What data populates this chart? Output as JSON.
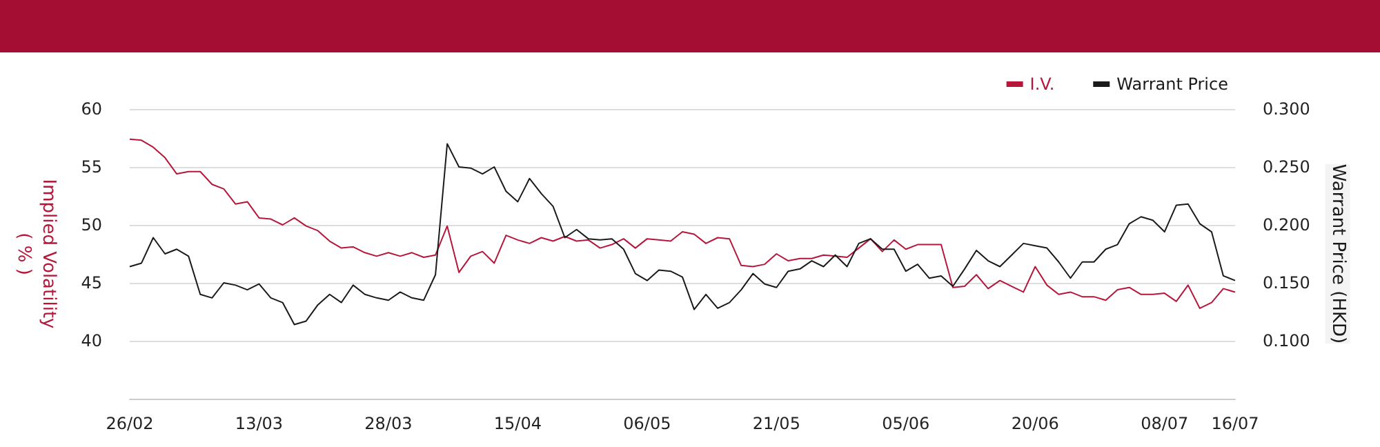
{
  "chart_data": {
    "type": "line",
    "categories": [
      "26/02",
      null,
      null,
      null,
      null,
      null,
      null,
      null,
      null,
      null,
      null,
      "13/03",
      null,
      null,
      null,
      null,
      null,
      null,
      null,
      null,
      null,
      null,
      "28/03",
      null,
      null,
      null,
      null,
      null,
      null,
      null,
      null,
      null,
      null,
      "15/04",
      null,
      null,
      null,
      null,
      null,
      null,
      null,
      null,
      null,
      null,
      "06/05",
      null,
      null,
      null,
      null,
      null,
      null,
      null,
      null,
      null,
      null,
      "21/05",
      null,
      null,
      null,
      null,
      null,
      null,
      null,
      null,
      null,
      null,
      "05/06",
      null,
      null,
      null,
      null,
      null,
      null,
      null,
      null,
      null,
      null,
      "20/06",
      null,
      null,
      null,
      null,
      null,
      null,
      null,
      null,
      null,
      null,
      "08/07",
      null,
      null,
      null,
      null,
      null,
      "16/07"
    ],
    "series": [
      {
        "name": "I.V.",
        "color": "#b5163a",
        "values": [
          57.4,
          57.3,
          56.7,
          55.8,
          54.4,
          54.6,
          54.6,
          53.5,
          53.1,
          51.8,
          52.0,
          50.6,
          50.5,
          50.0,
          50.6,
          49.9,
          49.5,
          48.6,
          48.0,
          48.1,
          47.6,
          47.3,
          47.6,
          47.3,
          47.6,
          47.2,
          47.4,
          49.9,
          45.9,
          47.3,
          47.7,
          46.7,
          49.1,
          48.7,
          48.4,
          48.9,
          48.6,
          49.0,
          48.6,
          48.7,
          48.0,
          48.3,
          48.8,
          48.0,
          48.8,
          48.7,
          48.6,
          49.4,
          49.2,
          48.4,
          48.9,
          48.8,
          46.5,
          46.4,
          46.6,
          47.5,
          46.9,
          47.1,
          47.1,
          47.4,
          47.3,
          47.2,
          48.0,
          48.8,
          47.7,
          48.7,
          47.9,
          48.3,
          48.3,
          48.3,
          44.6,
          44.7,
          45.7,
          44.5,
          45.2,
          44.7,
          44.2,
          46.4,
          44.8,
          44.0,
          44.2,
          43.8,
          43.8,
          43.5,
          44.4,
          44.6,
          44.0,
          44.0,
          44.1,
          43.4,
          44.8,
          42.8,
          43.3,
          44.5,
          44.2
        ]
      },
      {
        "name": "Warrant Price",
        "color": "#1a1a1a",
        "axis": "y2",
        "values": [
          0.164,
          0.167,
          0.189,
          0.175,
          0.179,
          0.173,
          0.14,
          0.137,
          0.15,
          0.148,
          0.144,
          0.149,
          0.137,
          0.133,
          0.114,
          0.117,
          0.131,
          0.14,
          0.133,
          0.148,
          0.14,
          0.137,
          0.135,
          0.142,
          0.137,
          0.135,
          0.157,
          0.27,
          0.25,
          0.249,
          0.244,
          0.25,
          0.229,
          0.22,
          0.24,
          0.227,
          0.216,
          0.189,
          0.196,
          0.188,
          0.187,
          0.188,
          0.179,
          0.158,
          0.152,
          0.161,
          0.16,
          0.155,
          0.127,
          0.14,
          0.128,
          0.133,
          0.144,
          0.158,
          0.149,
          0.146,
          0.16,
          0.162,
          0.169,
          0.164,
          0.174,
          0.164,
          0.184,
          0.188,
          0.179,
          0.179,
          0.16,
          0.166,
          0.154,
          0.156,
          0.147,
          0.162,
          0.178,
          0.169,
          0.164,
          0.174,
          0.184,
          0.182,
          0.18,
          0.168,
          0.154,
          0.168,
          0.168,
          0.179,
          0.183,
          0.201,
          0.207,
          0.204,
          0.194,
          0.217,
          0.218,
          0.201,
          0.194,
          0.156,
          0.152
        ]
      }
    ],
    "ylabel": "Implied Volatility\n( % )",
    "y2label": "Warrant Price (HKD)",
    "ylim": [
      35,
      60
    ],
    "yticks": [
      40,
      45,
      50,
      55,
      60
    ],
    "y2lim": [
      0.05,
      0.3
    ],
    "y2ticks": [
      {
        "value": 0.1,
        "label": "0.100"
      },
      {
        "value": 0.15,
        "label": "0.150"
      },
      {
        "value": 0.2,
        "label": "0.200"
      },
      {
        "value": 0.25,
        "label": "0.250"
      },
      {
        "value": 0.3,
        "label": "0.300"
      }
    ],
    "grid": "y",
    "legend": "top right",
    "marker": "none",
    "line_style": "solid"
  }
}
